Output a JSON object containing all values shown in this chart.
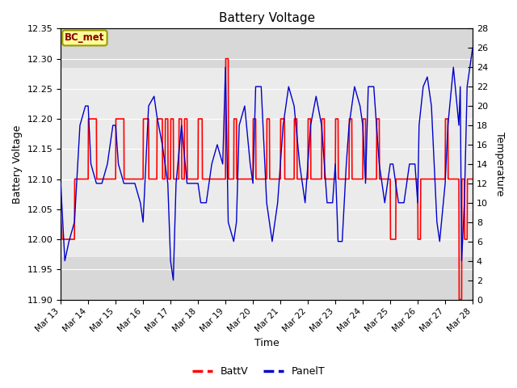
{
  "title": "Battery Voltage",
  "xlabel": "Time",
  "ylabel_left": "Battery Voltage",
  "ylabel_right": "Temperature",
  "ylim_left": [
    11.9,
    12.35
  ],
  "ylim_right": [
    0,
    28
  ],
  "background_color": "#ffffff",
  "plot_bg_outer": "#d8d8d8",
  "plot_bg_inner": "#ebebeb",
  "annotation_text": "BC_met",
  "annotation_bg": "#ffff99",
  "annotation_border": "#999900",
  "annotation_text_color": "#880000",
  "x_ticks": [
    "Mar 13",
    "Mar 14",
    "Mar 15",
    "Mar 16",
    "Mar 17",
    "Mar 18",
    "Mar 19",
    "Mar 20",
    "Mar 21",
    "Mar 22",
    "Mar 23",
    "Mar 24",
    "Mar 25",
    "Mar 26",
    "Mar 27",
    "Mar 28"
  ],
  "batt_color": "#ff0000",
  "panel_color": "#0000cc",
  "batt_data": [
    [
      0.0,
      12.04
    ],
    [
      0.05,
      12.0
    ],
    [
      0.5,
      12.0
    ],
    [
      0.51,
      12.1
    ],
    [
      1.0,
      12.1
    ],
    [
      1.01,
      12.2
    ],
    [
      1.3,
      12.2
    ],
    [
      1.31,
      12.1
    ],
    [
      2.0,
      12.1
    ],
    [
      2.01,
      12.2
    ],
    [
      2.3,
      12.2
    ],
    [
      2.31,
      12.1
    ],
    [
      3.0,
      12.1
    ],
    [
      3.01,
      12.2
    ],
    [
      3.2,
      12.2
    ],
    [
      3.21,
      12.1
    ],
    [
      3.5,
      12.1
    ],
    [
      3.51,
      12.2
    ],
    [
      3.7,
      12.2
    ],
    [
      3.71,
      12.1
    ],
    [
      3.8,
      12.1
    ],
    [
      3.81,
      12.2
    ],
    [
      3.9,
      12.2
    ],
    [
      3.91,
      12.1
    ],
    [
      4.0,
      12.1
    ],
    [
      4.01,
      12.2
    ],
    [
      4.1,
      12.2
    ],
    [
      4.11,
      12.1
    ],
    [
      4.3,
      12.1
    ],
    [
      4.31,
      12.2
    ],
    [
      4.4,
      12.2
    ],
    [
      4.41,
      12.1
    ],
    [
      4.5,
      12.1
    ],
    [
      4.51,
      12.2
    ],
    [
      4.6,
      12.2
    ],
    [
      4.61,
      12.1
    ],
    [
      5.0,
      12.1
    ],
    [
      5.01,
      12.2
    ],
    [
      5.15,
      12.2
    ],
    [
      5.16,
      12.1
    ],
    [
      6.0,
      12.1
    ],
    [
      6.01,
      12.3
    ],
    [
      6.1,
      12.3
    ],
    [
      6.11,
      12.1
    ],
    [
      6.3,
      12.1
    ],
    [
      6.31,
      12.2
    ],
    [
      6.4,
      12.2
    ],
    [
      6.41,
      12.1
    ],
    [
      7.0,
      12.1
    ],
    [
      7.01,
      12.2
    ],
    [
      7.1,
      12.2
    ],
    [
      7.11,
      12.1
    ],
    [
      7.5,
      12.1
    ],
    [
      7.51,
      12.2
    ],
    [
      7.6,
      12.2
    ],
    [
      7.61,
      12.1
    ],
    [
      8.0,
      12.1
    ],
    [
      8.01,
      12.2
    ],
    [
      8.15,
      12.2
    ],
    [
      8.16,
      12.1
    ],
    [
      8.5,
      12.1
    ],
    [
      8.51,
      12.2
    ],
    [
      8.6,
      12.2
    ],
    [
      8.61,
      12.1
    ],
    [
      9.0,
      12.1
    ],
    [
      9.01,
      12.2
    ],
    [
      9.1,
      12.2
    ],
    [
      9.11,
      12.1
    ],
    [
      9.5,
      12.1
    ],
    [
      9.51,
      12.2
    ],
    [
      9.6,
      12.2
    ],
    [
      9.61,
      12.1
    ],
    [
      10.0,
      12.1
    ],
    [
      10.01,
      12.2
    ],
    [
      10.1,
      12.2
    ],
    [
      10.11,
      12.1
    ],
    [
      10.5,
      12.1
    ],
    [
      10.51,
      12.2
    ],
    [
      10.6,
      12.2
    ],
    [
      10.61,
      12.1
    ],
    [
      11.0,
      12.1
    ],
    [
      11.01,
      12.2
    ],
    [
      11.1,
      12.2
    ],
    [
      11.11,
      12.1
    ],
    [
      11.5,
      12.1
    ],
    [
      11.51,
      12.2
    ],
    [
      11.6,
      12.2
    ],
    [
      11.61,
      12.1
    ],
    [
      12.0,
      12.1
    ],
    [
      12.01,
      12.0
    ],
    [
      12.2,
      12.0
    ],
    [
      12.21,
      12.1
    ],
    [
      13.0,
      12.1
    ],
    [
      13.01,
      12.0
    ],
    [
      13.1,
      12.0
    ],
    [
      13.11,
      12.1
    ],
    [
      14.0,
      12.1
    ],
    [
      14.01,
      12.2
    ],
    [
      14.1,
      12.2
    ],
    [
      14.11,
      12.1
    ],
    [
      14.5,
      12.1
    ],
    [
      14.51,
      11.9
    ],
    [
      14.6,
      11.9
    ],
    [
      14.61,
      12.1
    ],
    [
      14.7,
      12.1
    ],
    [
      14.71,
      12.0
    ],
    [
      14.8,
      12.0
    ],
    [
      14.81,
      12.1
    ],
    [
      15.0,
      12.1
    ]
  ],
  "panel_data_temp": [
    [
      0.0,
      12
    ],
    [
      0.15,
      4
    ],
    [
      0.3,
      6
    ],
    [
      0.5,
      8
    ],
    [
      0.7,
      18
    ],
    [
      0.9,
      20
    ],
    [
      1.0,
      20
    ],
    [
      1.1,
      14
    ],
    [
      1.3,
      12
    ],
    [
      1.5,
      12
    ],
    [
      1.7,
      14
    ],
    [
      1.9,
      18
    ],
    [
      2.0,
      18
    ],
    [
      2.1,
      14
    ],
    [
      2.3,
      12
    ],
    [
      2.5,
      12
    ],
    [
      2.7,
      12
    ],
    [
      2.9,
      10
    ],
    [
      3.0,
      8
    ],
    [
      3.1,
      14
    ],
    [
      3.2,
      20
    ],
    [
      3.4,
      21
    ],
    [
      3.5,
      19
    ],
    [
      3.7,
      16
    ],
    [
      3.8,
      14
    ],
    [
      3.9,
      12
    ],
    [
      4.0,
      4
    ],
    [
      4.1,
      2
    ],
    [
      4.2,
      12
    ],
    [
      4.4,
      18
    ],
    [
      4.6,
      12
    ],
    [
      4.8,
      12
    ],
    [
      5.0,
      12
    ],
    [
      5.1,
      10
    ],
    [
      5.3,
      10
    ],
    [
      5.5,
      14
    ],
    [
      5.7,
      16
    ],
    [
      5.9,
      14
    ],
    [
      6.0,
      24
    ],
    [
      6.1,
      8
    ],
    [
      6.3,
      6
    ],
    [
      6.4,
      8
    ],
    [
      6.5,
      18
    ],
    [
      6.7,
      20
    ],
    [
      6.9,
      14
    ],
    [
      7.0,
      12
    ],
    [
      7.1,
      22
    ],
    [
      7.3,
      22
    ],
    [
      7.5,
      10
    ],
    [
      7.7,
      6
    ],
    [
      7.9,
      10
    ],
    [
      8.0,
      14
    ],
    [
      8.1,
      18
    ],
    [
      8.3,
      22
    ],
    [
      8.5,
      20
    ],
    [
      8.7,
      14
    ],
    [
      8.9,
      10
    ],
    [
      9.0,
      14
    ],
    [
      9.1,
      18
    ],
    [
      9.3,
      21
    ],
    [
      9.5,
      18
    ],
    [
      9.7,
      10
    ],
    [
      9.9,
      10
    ],
    [
      10.0,
      14
    ],
    [
      10.1,
      6
    ],
    [
      10.25,
      6
    ],
    [
      10.4,
      14
    ],
    [
      10.5,
      18
    ],
    [
      10.7,
      22
    ],
    [
      10.9,
      20
    ],
    [
      11.0,
      18
    ],
    [
      11.1,
      12
    ],
    [
      11.2,
      22
    ],
    [
      11.4,
      22
    ],
    [
      11.6,
      14
    ],
    [
      11.8,
      10
    ],
    [
      12.0,
      14
    ],
    [
      12.1,
      14
    ],
    [
      12.3,
      10
    ],
    [
      12.5,
      10
    ],
    [
      12.7,
      14
    ],
    [
      12.9,
      14
    ],
    [
      13.0,
      10
    ],
    [
      13.05,
      18
    ],
    [
      13.2,
      22
    ],
    [
      13.35,
      23
    ],
    [
      13.5,
      20
    ],
    [
      13.7,
      8
    ],
    [
      13.8,
      6
    ],
    [
      14.0,
      12
    ],
    [
      14.1,
      18
    ],
    [
      14.3,
      24
    ],
    [
      14.5,
      18
    ],
    [
      14.55,
      22
    ],
    [
      14.6,
      4
    ],
    [
      14.7,
      10
    ],
    [
      14.8,
      22
    ],
    [
      14.9,
      24
    ],
    [
      15.0,
      26
    ]
  ]
}
